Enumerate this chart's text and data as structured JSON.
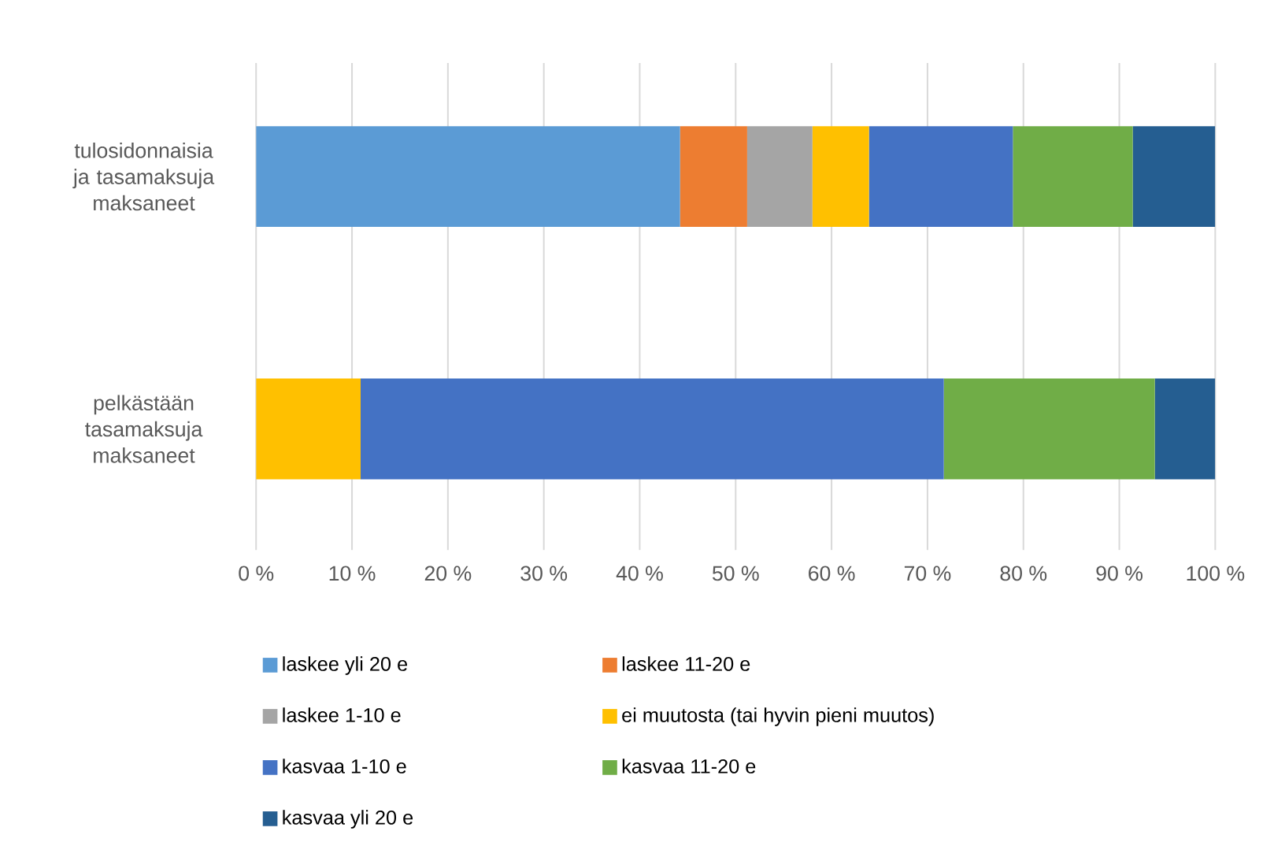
{
  "chart_data": {
    "type": "bar",
    "orientation": "horizontal",
    "stacked": true,
    "categories": [
      "tulosidonnaisia ja tasamaksuja maksaneet",
      "pelkästään tasamaksuja maksaneet"
    ],
    "series": [
      {
        "name": "laskee yli 20 e",
        "color": "#5b9bd5",
        "values": [
          44.2,
          0
        ]
      },
      {
        "name": "laskee 11-20 e",
        "color": "#ed7d31",
        "values": [
          7.0,
          0
        ]
      },
      {
        "name": "laskee 1-10 e",
        "color": "#a5a5a5",
        "values": [
          6.8,
          0
        ]
      },
      {
        "name": "ei muutosta (tai hyvin pieni muutos)",
        "color": "#ffc000",
        "values": [
          5.9,
          10.9
        ]
      },
      {
        "name": "kasvaa 1-10 e",
        "color": "#4472c4",
        "values": [
          15.0,
          60.8
        ]
      },
      {
        "name": "kasvaa 11-20 e",
        "color": "#70ad47",
        "values": [
          12.5,
          22.0
        ]
      },
      {
        "name": "kasvaa yli 20 e",
        "color": "#255e91",
        "values": [
          8.6,
          6.3
        ]
      }
    ],
    "xlim": [
      0,
      100
    ],
    "xticks": [
      {
        "value": 0,
        "label": "0 %"
      },
      {
        "value": 10,
        "label": "10 %"
      },
      {
        "value": 20,
        "label": "20 %"
      },
      {
        "value": 30,
        "label": "30 %"
      },
      {
        "value": 40,
        "label": "40 %"
      },
      {
        "value": 50,
        "label": "50 %"
      },
      {
        "value": 60,
        "label": "60 %"
      },
      {
        "value": 70,
        "label": "70 %"
      },
      {
        "value": 80,
        "label": "80 %"
      },
      {
        "value": 90,
        "label": "90 %"
      },
      {
        "value": 100,
        "label": "100 %"
      }
    ],
    "grid": "x",
    "legend": "bottom"
  }
}
